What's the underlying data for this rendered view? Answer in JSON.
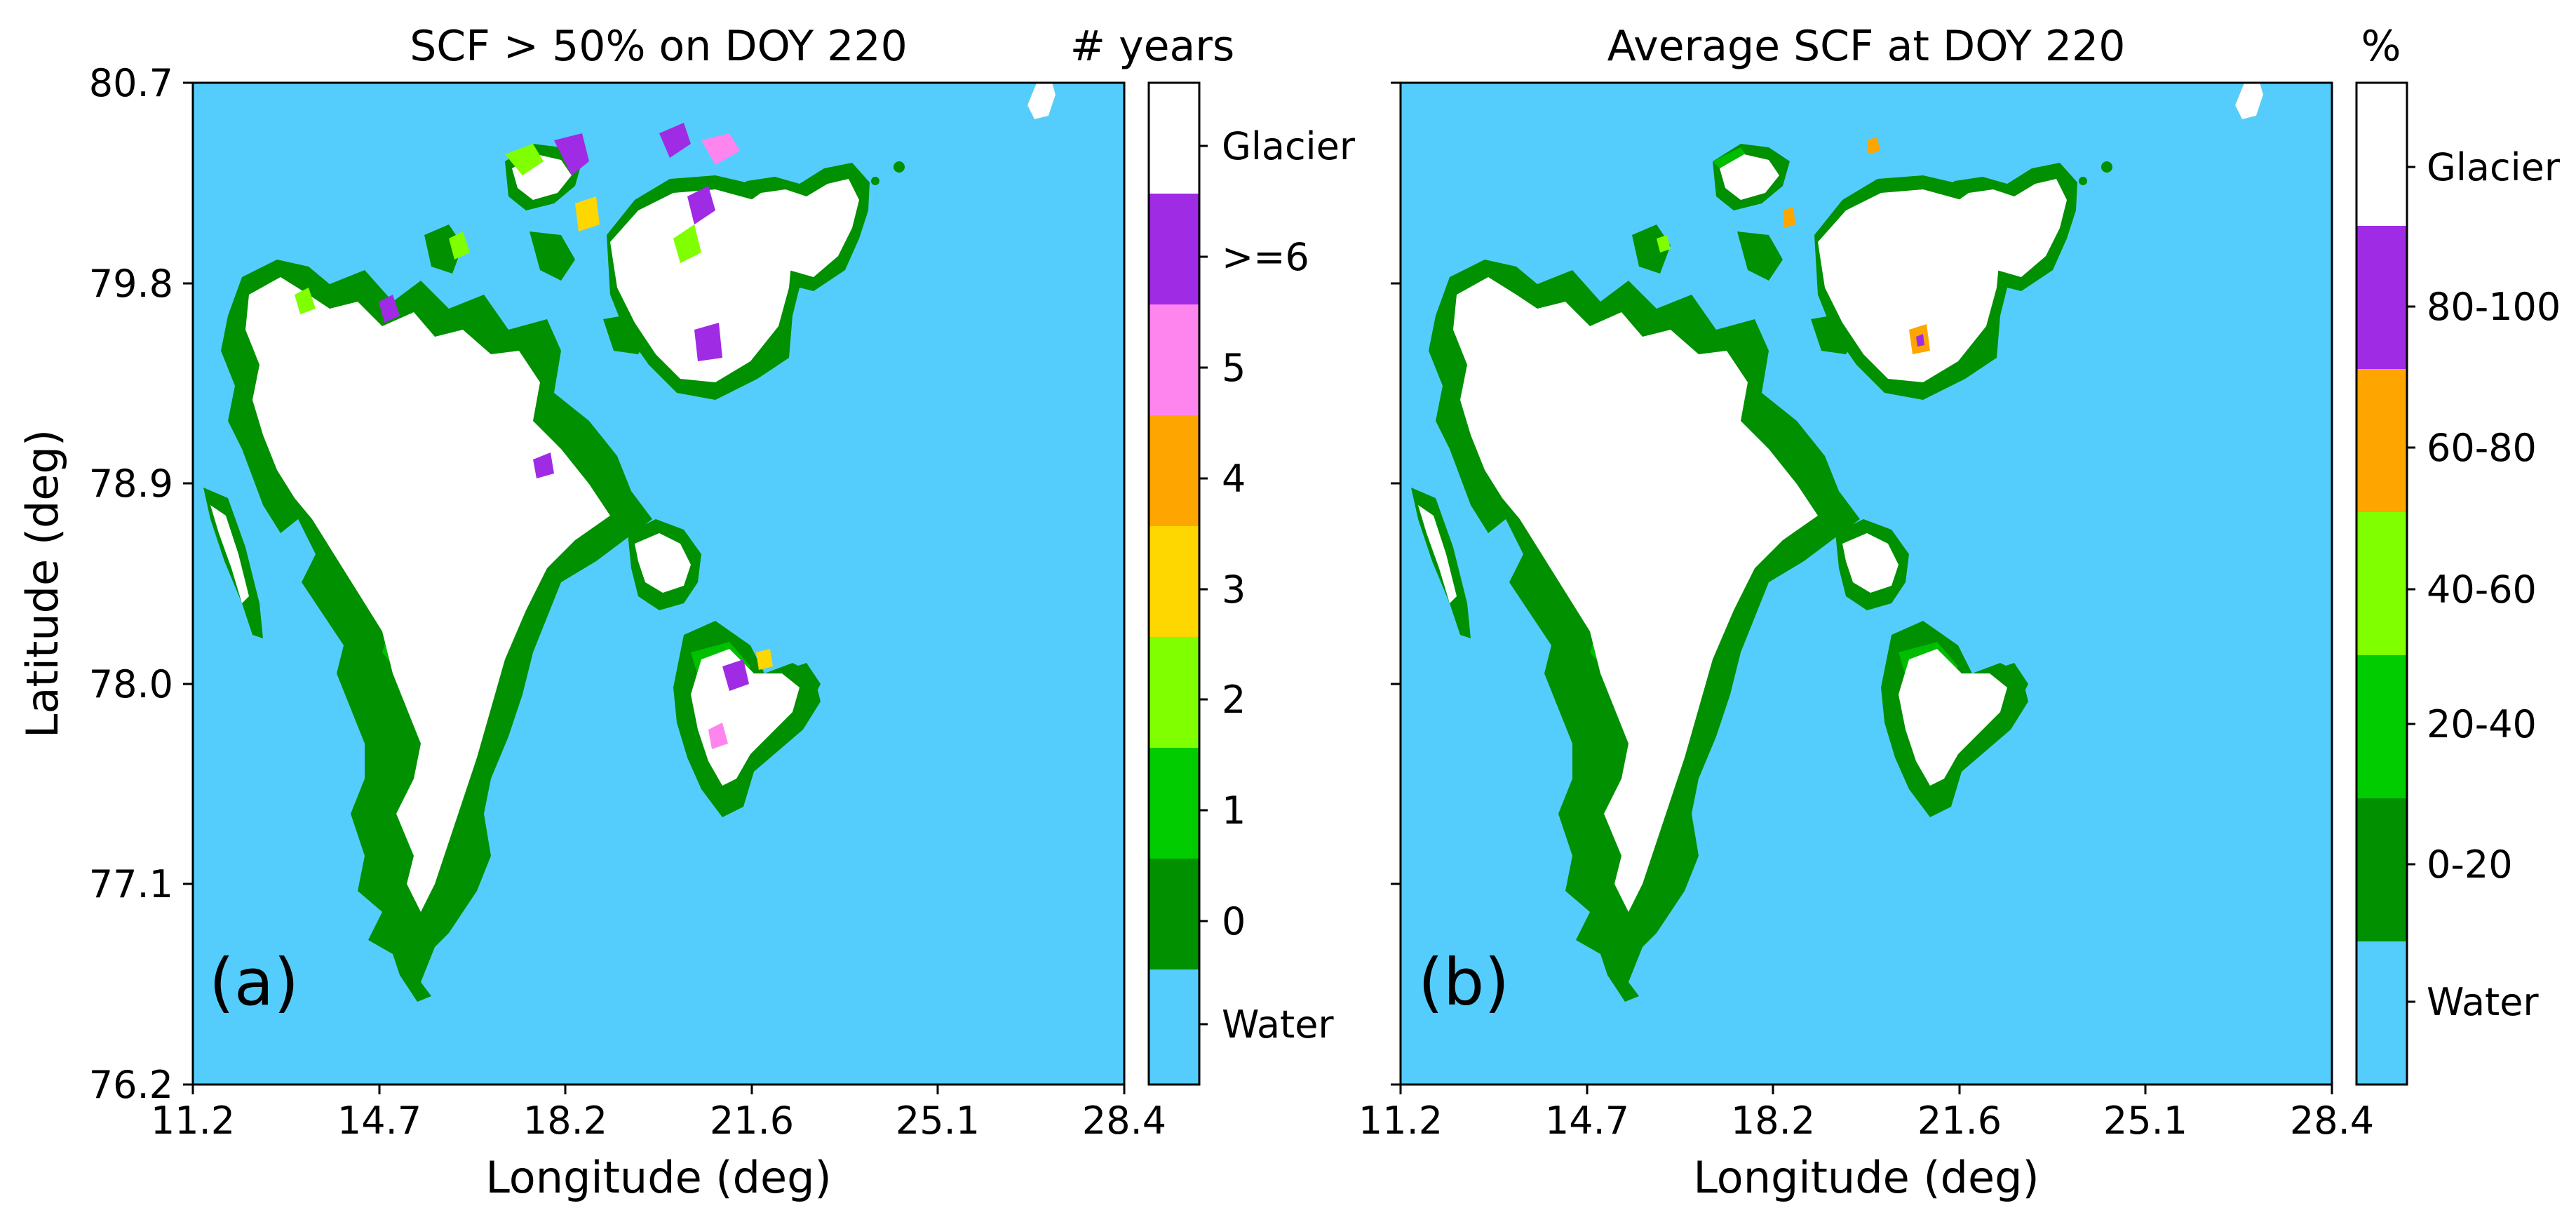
{
  "figure": {
    "y_axis_label": "Latitude (deg)",
    "colors": {
      "water": "#55CDFC",
      "glacier": "#FFFFFF",
      "land_dark": "#009000",
      "land_mid": "#00CC00"
    }
  },
  "panels": [
    {
      "id": "a",
      "title": "SCF > 50% on DOY 220",
      "label": "(a)",
      "xlabel": "Longitude (deg)",
      "ylabel": "Latitude (deg)",
      "x_ticks": [
        "11.2",
        "14.7",
        "18.2",
        "21.6",
        "25.1",
        "28.4"
      ],
      "y_ticks": [
        "80.7",
        "79.8",
        "78.9",
        "78.0",
        "77.1",
        "76.2"
      ],
      "colorbar": {
        "title": "# years",
        "classes": [
          {
            "label": "Glacier",
            "color": "#FFFFFF"
          },
          {
            "label": ">=6",
            "color": "#A02BE4"
          },
          {
            "label": "5",
            "color": "#FF85EE"
          },
          {
            "label": "4",
            "color": "#FFA500"
          },
          {
            "label": "3",
            "color": "#FFD700"
          },
          {
            "label": "2",
            "color": "#7FFF00"
          },
          {
            "label": "1",
            "color": "#00CC00"
          },
          {
            "label": "0",
            "color": "#009000"
          },
          {
            "label": "Water",
            "color": "#55CDFC"
          }
        ]
      }
    },
    {
      "id": "b",
      "title": "Average SCF at DOY 220",
      "label": "(b)",
      "xlabel": "Longitude (deg)",
      "x_ticks": [
        "11.2",
        "14.7",
        "18.2",
        "21.6",
        "25.1",
        "28.4"
      ],
      "y_ticks": [
        "",
        "",
        "",
        "",
        "",
        ""
      ],
      "colorbar": {
        "title": "%",
        "classes": [
          {
            "label": "Glacier",
            "color": "#FFFFFF"
          },
          {
            "label": "80-100",
            "color": "#A02BE4"
          },
          {
            "label": "60-80",
            "color": "#FFA500"
          },
          {
            "label": "40-60",
            "color": "#7FFF00"
          },
          {
            "label": "20-40",
            "color": "#00CC00"
          },
          {
            "label": "0-20",
            "color": "#009000"
          },
          {
            "label": "Water",
            "color": "#55CDFC"
          }
        ]
      }
    }
  ]
}
